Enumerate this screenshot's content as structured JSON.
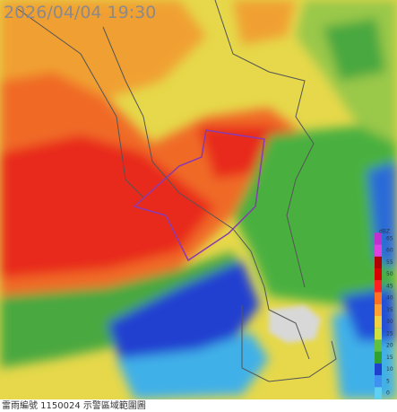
{
  "timestamp": "2026/04/04 19:30",
  "caption": "雷雨編號 1150024 示警區域範圍圖",
  "colorbar": {
    "unit": "dBZ",
    "ticks": [
      65,
      60,
      55,
      50,
      45,
      40,
      35,
      30,
      25,
      20,
      15,
      10,
      5,
      0
    ]
  }
}
